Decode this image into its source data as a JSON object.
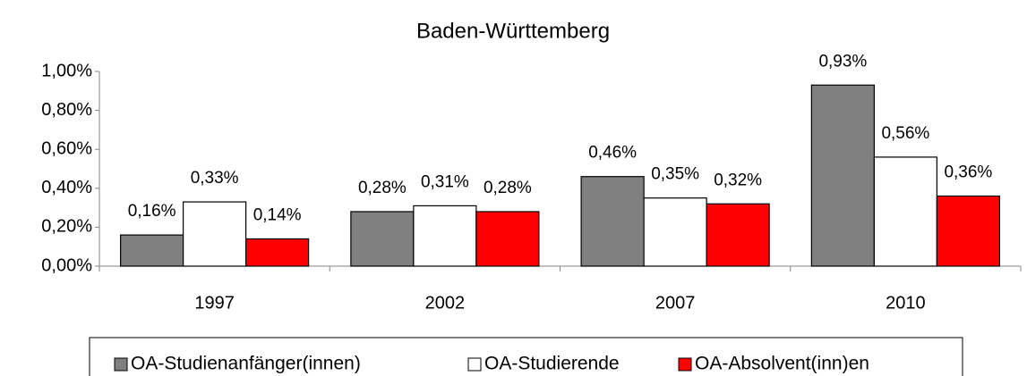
{
  "chart_data": {
    "type": "bar",
    "title": "Baden-Württemberg",
    "categories": [
      "1997",
      "2002",
      "2007",
      "2010"
    ],
    "series": [
      {
        "name": "OA-Studienanfänger(innen)",
        "color": "#808080",
        "values": [
          0.16,
          0.28,
          0.46,
          0.93
        ],
        "value_labels": [
          "0,16%",
          "0,28%",
          "0,46%",
          "0,93%"
        ]
      },
      {
        "name": "OA-Studierende",
        "color": "#ffffff",
        "values": [
          0.33,
          0.31,
          0.35,
          0.56
        ],
        "value_labels": [
          "0,33%",
          "0,31%",
          "0,35%",
          "0,56%"
        ]
      },
      {
        "name": "OA-Absolvent(inn)en",
        "color": "#ff0000",
        "values": [
          0.14,
          0.28,
          0.32,
          0.36
        ],
        "value_labels": [
          "0,14%",
          "0,28%",
          "0,32%",
          "0,36%"
        ]
      }
    ],
    "ylim": [
      0,
      1
    ],
    "yticks": [
      {
        "value": 0,
        "label": "0,00%"
      },
      {
        "value": 0.2,
        "label": "0,20%"
      },
      {
        "value": 0.4,
        "label": "0,40%"
      },
      {
        "value": 0.6,
        "label": "0,60%"
      },
      {
        "value": 0.8,
        "label": "0,80%"
      },
      {
        "value": 1,
        "label": "1,00%"
      }
    ],
    "grid": false,
    "legend": "bottom"
  }
}
